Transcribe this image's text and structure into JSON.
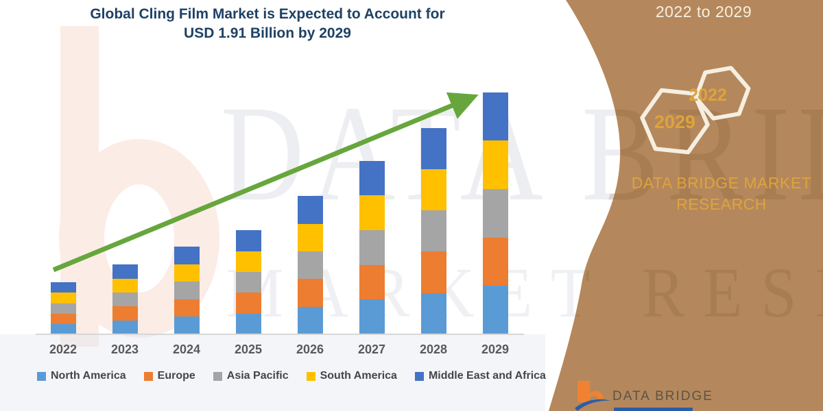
{
  "title": {
    "line1": "Global Cling Film Market is Expected to Account for",
    "line2": "USD 1.91 Billion by 2029"
  },
  "chart_data": {
    "type": "bar",
    "stacked": true,
    "title": "Global Cling Film Market is Expected to Account for USD 1.91 Billion by 2029",
    "unit": "USD Billion",
    "categories": [
      "2022",
      "2023",
      "2024",
      "2025",
      "2026",
      "2027",
      "2028",
      "2029"
    ],
    "series": [
      {
        "name": "North America",
        "color": "#5B9BD5",
        "values": [
          0.082,
          0.11,
          0.138,
          0.164,
          0.218,
          0.274,
          0.326,
          0.382
        ]
      },
      {
        "name": "Europe",
        "color": "#ED7D31",
        "values": [
          0.082,
          0.11,
          0.138,
          0.164,
          0.218,
          0.274,
          0.326,
          0.382
        ]
      },
      {
        "name": "Asia Pacific",
        "color": "#A5A5A5",
        "values": [
          0.082,
          0.11,
          0.138,
          0.164,
          0.218,
          0.274,
          0.326,
          0.382
        ]
      },
      {
        "name": "South America",
        "color": "#FFC000",
        "values": [
          0.082,
          0.11,
          0.138,
          0.164,
          0.218,
          0.274,
          0.326,
          0.382
        ]
      },
      {
        "name": "Middle East and Africa",
        "color": "#4472C4",
        "values": [
          0.082,
          0.11,
          0.138,
          0.164,
          0.218,
          0.274,
          0.326,
          0.382
        ]
      }
    ],
    "totals": [
      0.41,
      0.55,
      0.69,
      0.82,
      1.09,
      1.37,
      1.63,
      1.91
    ],
    "ylim": [
      0,
      2.0
    ],
    "grid": false,
    "legend_position": "bottom",
    "trend_arrow": true,
    "xlabel": "",
    "ylabel": ""
  },
  "watermark": {
    "line1": "DATA BRIDGE",
    "line2": "MARKET RESEARCH"
  },
  "side_panel": {
    "period_label": "2022 to 2029",
    "hexagon_start_year": "2022",
    "hexagon_end_year": "2029",
    "brand_line1": "DATA BRIDGE MARKET",
    "brand_line2": "RESEARCH"
  },
  "footer": {
    "brand": "DATA BRIDGE"
  },
  "colors": {
    "title_navy": "#1E4164",
    "arrow_green": "#67A63C",
    "panel_brown": "#B4885C",
    "hexagon_stroke_cream": "#F6EFE1",
    "gold_text": "#DFA33D",
    "axis_label_gray": "#595959",
    "legend_text": "#454545",
    "axis_line": "#D7D7D7",
    "logo_orange": "#F08232",
    "logo_blue": "#2D5CA7"
  }
}
